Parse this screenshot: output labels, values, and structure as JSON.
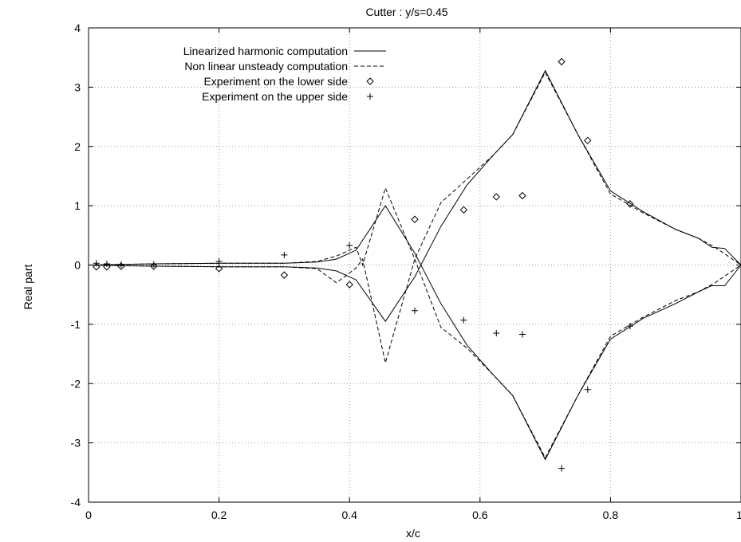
{
  "chart_data": {
    "type": "line",
    "title": "Cutter : y/s=0.45",
    "xlabel": "x/c",
    "ylabel": "Real part",
    "xlim": [
      0,
      1
    ],
    "ylim": [
      -4,
      4
    ],
    "xticks": [
      "0",
      "0.2",
      "0.4",
      "0.6",
      "0.8",
      "1"
    ],
    "yticks": [
      "-4",
      "-3",
      "-2",
      "-1",
      "0",
      "1",
      "2",
      "3",
      "4"
    ],
    "grid": true,
    "legend_position": "top-left",
    "series": [
      {
        "name": "Linearized harmonic computation",
        "style": "solid",
        "segments": [
          [
            [
              0.0,
              0
            ],
            [
              0.05,
              0.01
            ],
            [
              0.1,
              0.02
            ],
            [
              0.2,
              0.03
            ],
            [
              0.3,
              0.03
            ],
            [
              0.35,
              0.05
            ],
            [
              0.38,
              0.1
            ],
            [
              0.41,
              0.25
            ],
            [
              0.455,
              1.0
            ],
            [
              0.5,
              0.2
            ],
            [
              0.54,
              -0.65
            ],
            [
              0.58,
              -1.35
            ],
            [
              0.62,
              -1.85
            ],
            [
              0.65,
              -2.2
            ],
            [
              0.7,
              -3.28
            ],
            [
              0.75,
              -2.2
            ],
            [
              0.8,
              -1.25
            ],
            [
              0.85,
              -0.9
            ],
            [
              0.9,
              -0.65
            ],
            [
              0.935,
              -0.45
            ],
            [
              0.955,
              -0.35
            ],
            [
              0.975,
              -0.35
            ],
            [
              1.0,
              0
            ]
          ],
          [
            [
              0.0,
              0
            ],
            [
              0.05,
              -0.01
            ],
            [
              0.1,
              -0.02
            ],
            [
              0.2,
              -0.03
            ],
            [
              0.3,
              -0.03
            ],
            [
              0.35,
              -0.05
            ],
            [
              0.38,
              -0.1
            ],
            [
              0.41,
              -0.25
            ],
            [
              0.455,
              -0.95
            ],
            [
              0.5,
              -0.2
            ],
            [
              0.54,
              0.65
            ],
            [
              0.58,
              1.35
            ],
            [
              0.62,
              1.85
            ],
            [
              0.65,
              2.2
            ],
            [
              0.7,
              3.28
            ],
            [
              0.75,
              2.2
            ],
            [
              0.8,
              1.25
            ],
            [
              0.85,
              0.9
            ],
            [
              0.9,
              0.6
            ],
            [
              0.935,
              0.45
            ],
            [
              0.955,
              0.3
            ],
            [
              0.975,
              0.28
            ],
            [
              1.0,
              0
            ]
          ]
        ]
      },
      {
        "name": "Non linear unsteady computation",
        "style": "dashed",
        "segments": [
          [
            [
              0.0,
              0
            ],
            [
              0.05,
              0.01
            ],
            [
              0.1,
              0.02
            ],
            [
              0.2,
              0.03
            ],
            [
              0.3,
              0.03
            ],
            [
              0.35,
              0.06
            ],
            [
              0.38,
              0.15
            ],
            [
              0.41,
              0.3
            ],
            [
              0.42,
              0.0
            ],
            [
              0.455,
              1.3
            ],
            [
              0.5,
              0.1
            ],
            [
              0.54,
              -1.05
            ],
            [
              0.58,
              -1.4
            ],
            [
              0.62,
              -1.85
            ],
            [
              0.65,
              -2.2
            ],
            [
              0.7,
              -3.25
            ],
            [
              0.75,
              -2.2
            ],
            [
              0.8,
              -1.2
            ],
            [
              0.85,
              -0.88
            ],
            [
              0.9,
              -0.6
            ],
            [
              0.935,
              -0.45
            ],
            [
              0.96,
              -0.3
            ],
            [
              0.98,
              -0.15
            ],
            [
              1.0,
              0
            ]
          ],
          [
            [
              0.0,
              0
            ],
            [
              0.05,
              -0.01
            ],
            [
              0.1,
              -0.02
            ],
            [
              0.2,
              -0.03
            ],
            [
              0.3,
              -0.03
            ],
            [
              0.35,
              -0.06
            ],
            [
              0.38,
              -0.3
            ],
            [
              0.41,
              -0.05
            ],
            [
              0.42,
              0.1
            ],
            [
              0.455,
              -1.65
            ],
            [
              0.5,
              0.1
            ],
            [
              0.54,
              1.05
            ],
            [
              0.58,
              1.45
            ],
            [
              0.62,
              1.85
            ],
            [
              0.65,
              2.2
            ],
            [
              0.7,
              3.25
            ],
            [
              0.75,
              2.2
            ],
            [
              0.8,
              1.2
            ],
            [
              0.85,
              0.88
            ],
            [
              0.9,
              0.6
            ],
            [
              0.935,
              0.45
            ],
            [
              0.96,
              0.3
            ],
            [
              0.98,
              0.15
            ],
            [
              1.0,
              0
            ]
          ]
        ]
      },
      {
        "name": "Experiment on the lower side",
        "marker": "diamond",
        "points": [
          [
            0.012,
            -0.03
          ],
          [
            0.028,
            -0.03
          ],
          [
            0.05,
            -0.02
          ],
          [
            0.1,
            -0.02
          ],
          [
            0.2,
            -0.06
          ],
          [
            0.3,
            -0.17
          ],
          [
            0.4,
            -0.33
          ],
          [
            0.5,
            0.77
          ],
          [
            0.575,
            0.93
          ],
          [
            0.625,
            1.15
          ],
          [
            0.665,
            1.17
          ],
          [
            0.725,
            3.43
          ],
          [
            0.765,
            2.1
          ],
          [
            0.83,
            1.03
          ]
        ]
      },
      {
        "name": "Experiment on the upper side",
        "marker": "plus",
        "points": [
          [
            0.012,
            0.03
          ],
          [
            0.028,
            0.02
          ],
          [
            0.05,
            0.01
          ],
          [
            0.1,
            0.01
          ],
          [
            0.2,
            0.06
          ],
          [
            0.3,
            0.17
          ],
          [
            0.4,
            0.33
          ],
          [
            0.5,
            -0.77
          ],
          [
            0.575,
            -0.93
          ],
          [
            0.625,
            -1.15
          ],
          [
            0.665,
            -1.17
          ],
          [
            0.725,
            -3.43
          ],
          [
            0.765,
            -2.1
          ],
          [
            0.83,
            -1.03
          ]
        ]
      }
    ]
  }
}
